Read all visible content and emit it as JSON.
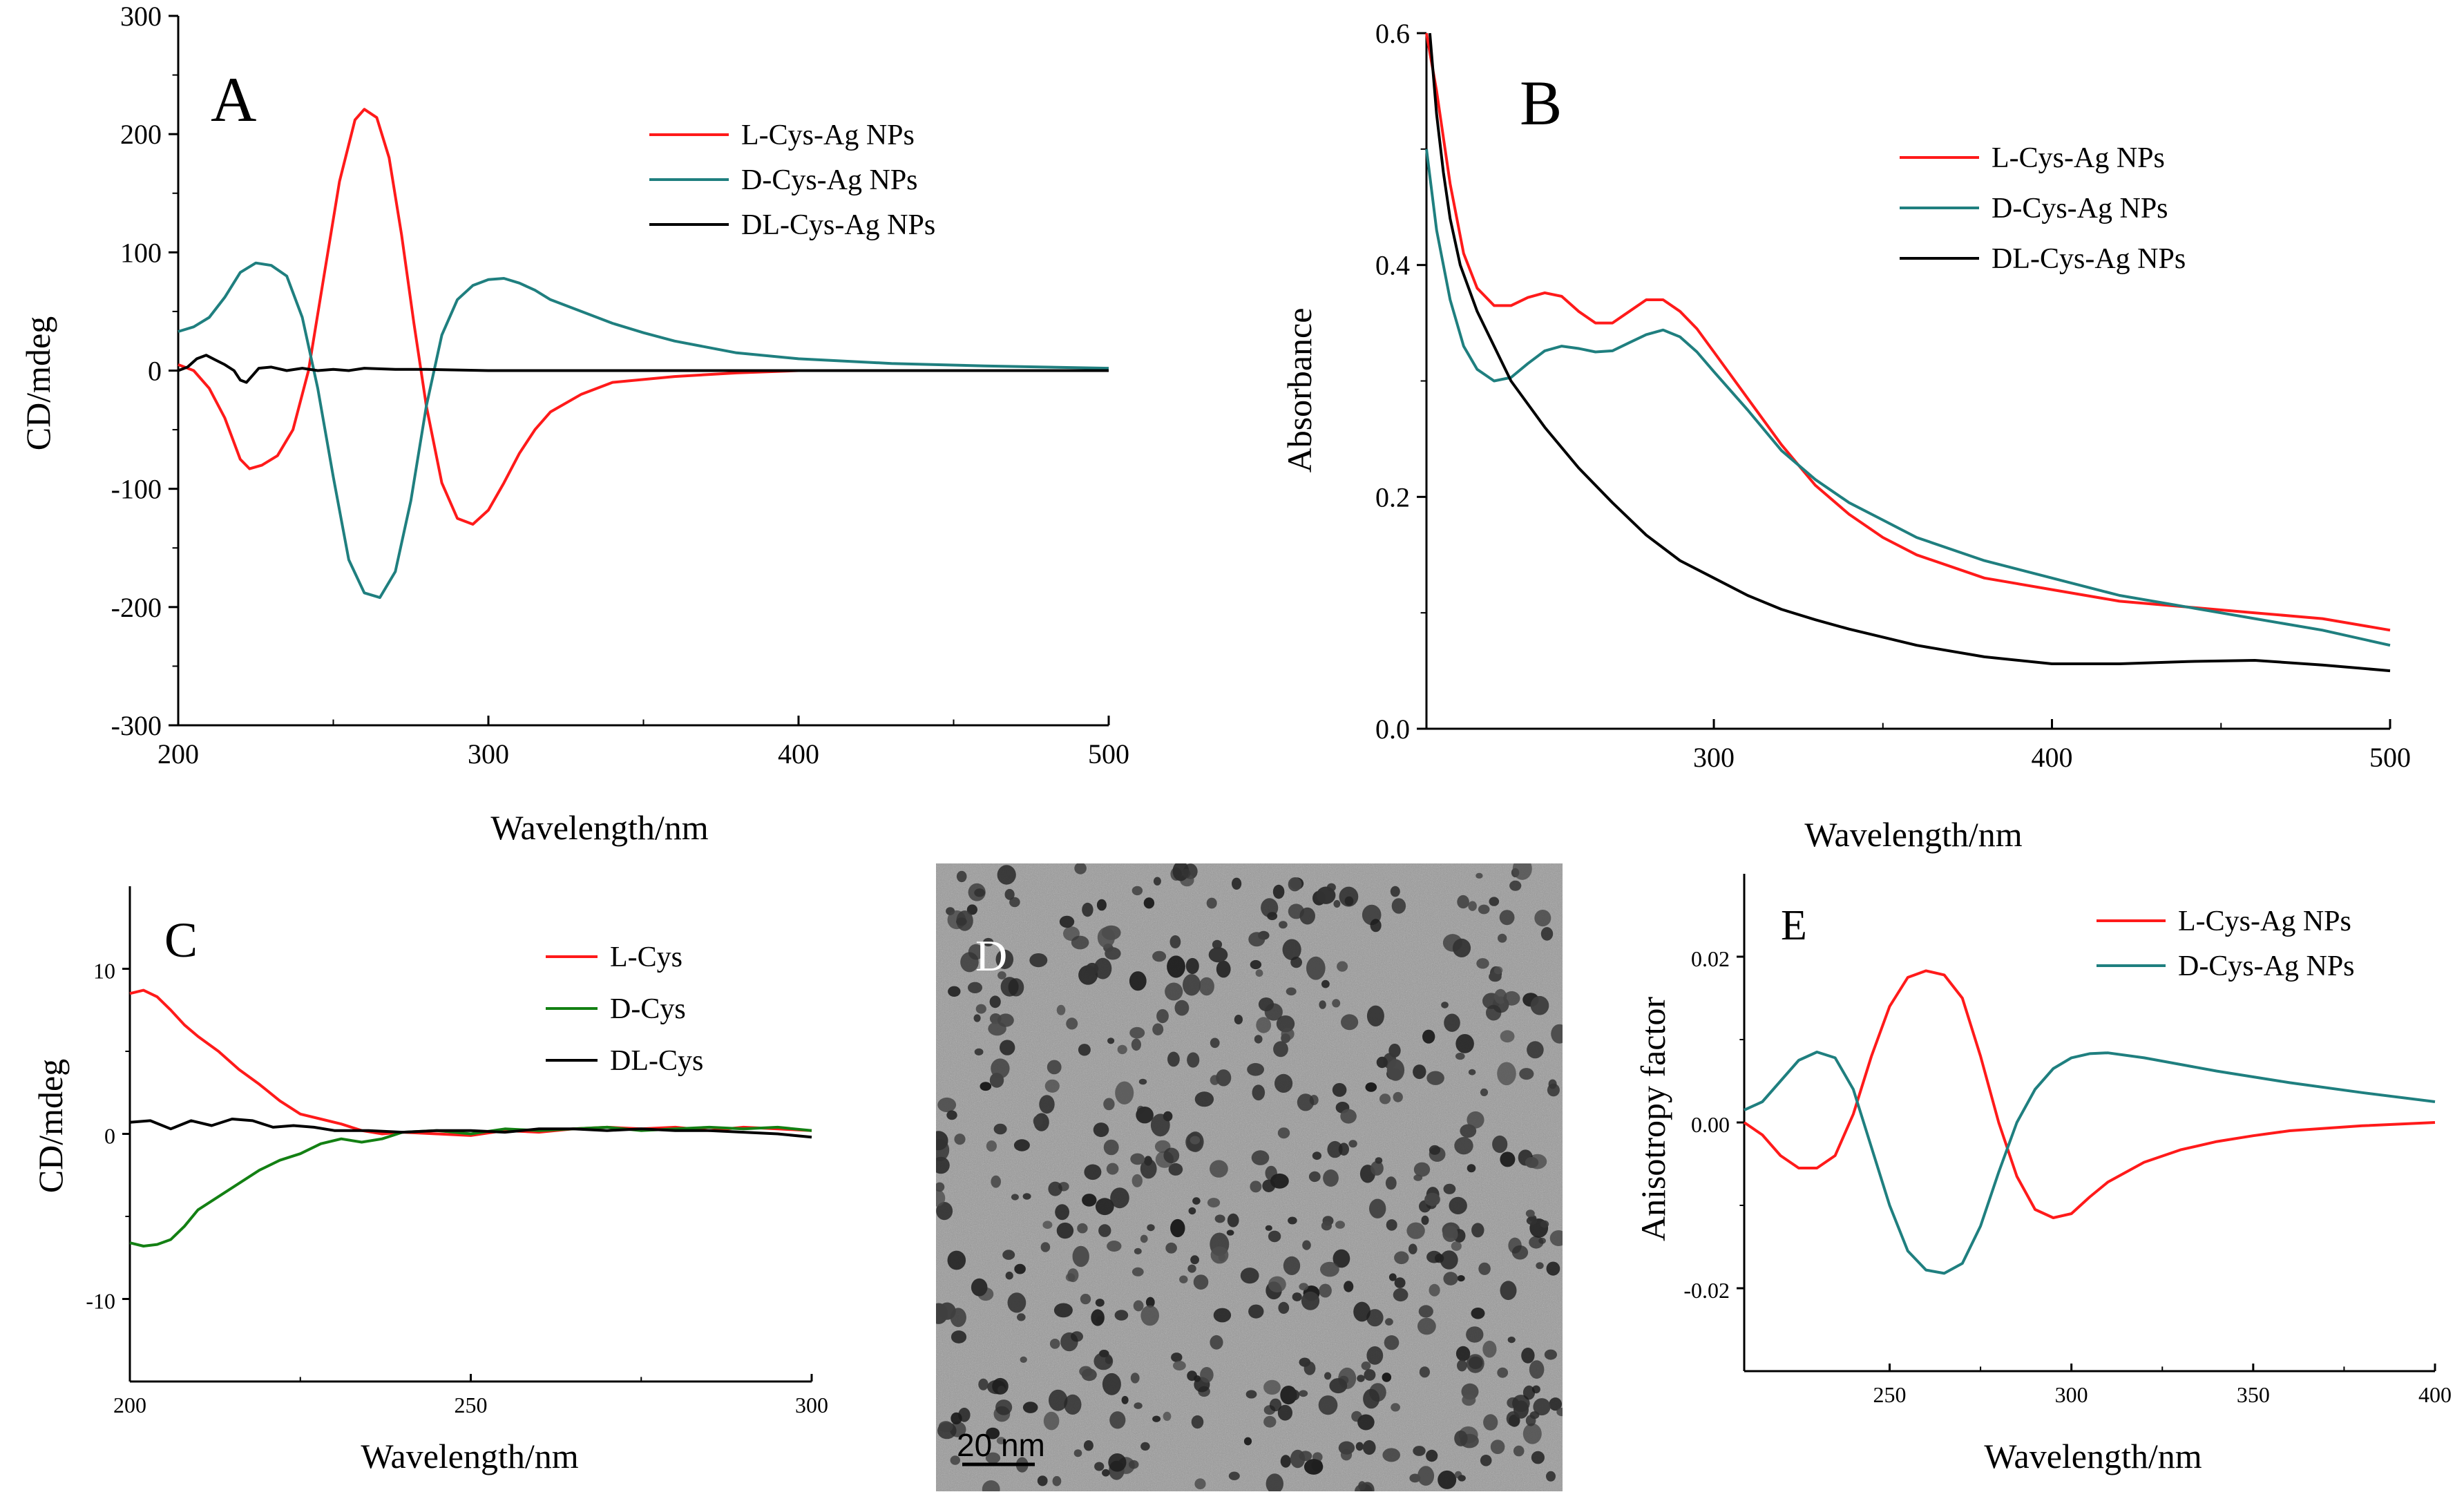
{
  "figure": {
    "panels": [
      "A",
      "B",
      "C",
      "D",
      "E"
    ]
  },
  "colors": {
    "red": "#ff1a1a",
    "teal": "#1f7f7f",
    "black": "#000000",
    "green": "#138013"
  },
  "chart_data": [
    {
      "panel": "A",
      "type": "line",
      "xlabel": "Wavelength/nm",
      "ylabel": "CD/mdeg",
      "xlim": [
        200,
        500
      ],
      "ylim": [
        -300,
        300
      ],
      "xticks": [
        200,
        300,
        400,
        500
      ],
      "yticks": [
        -300,
        -200,
        -100,
        0,
        100,
        200,
        300
      ],
      "legend_position": "top-right",
      "series": [
        {
          "name": "L-Cys-Ag NPs",
          "color": "red",
          "x": [
            200,
            205,
            210,
            215,
            220,
            223,
            227,
            232,
            237,
            242,
            247,
            252,
            257,
            260,
            264,
            268,
            272,
            276,
            280,
            285,
            290,
            295,
            300,
            305,
            310,
            315,
            320,
            330,
            340,
            360,
            380,
            400,
            430,
            460,
            500
          ],
          "y": [
            5,
            0,
            -15,
            -40,
            -75,
            -83,
            -80,
            -72,
            -50,
            0,
            80,
            160,
            212,
            221,
            214,
            180,
            115,
            40,
            -30,
            -95,
            -125,
            -130,
            -118,
            -95,
            -70,
            -50,
            -35,
            -20,
            -10,
            -5,
            -2,
            0,
            0,
            0,
            0
          ]
        },
        {
          "name": "D-Cys-Ag NPs",
          "color": "teal",
          "x": [
            200,
            205,
            210,
            215,
            220,
            225,
            230,
            235,
            240,
            245,
            250,
            255,
            260,
            265,
            270,
            275,
            280,
            285,
            290,
            295,
            300,
            305,
            310,
            315,
            320,
            330,
            340,
            350,
            360,
            380,
            400,
            430,
            460,
            500
          ],
          "y": [
            33,
            37,
            45,
            62,
            83,
            91,
            89,
            80,
            45,
            -15,
            -90,
            -160,
            -188,
            -192,
            -170,
            -110,
            -30,
            30,
            60,
            72,
            77,
            78,
            74,
            68,
            60,
            50,
            40,
            32,
            25,
            15,
            10,
            6,
            4,
            2
          ]
        },
        {
          "name": "DL-Cys-Ag NPs",
          "color": "black",
          "x": [
            200,
            203,
            206,
            209,
            212,
            215,
            218,
            220,
            222,
            224,
            226,
            230,
            235,
            240,
            245,
            250,
            255,
            260,
            270,
            280,
            300,
            350,
            400,
            450,
            500
          ],
          "y": [
            0,
            3,
            10,
            13,
            9,
            5,
            0,
            -8,
            -10,
            -4,
            2,
            3,
            0,
            2,
            0,
            1,
            0,
            2,
            1,
            1,
            0,
            0,
            0,
            0,
            0
          ]
        }
      ],
      "label": "A"
    },
    {
      "panel": "B",
      "type": "line",
      "xlabel": "Wavelength/nm",
      "ylabel": "Absorbance",
      "xlim": [
        215,
        500
      ],
      "ylim": [
        0.0,
        0.6
      ],
      "xticks": [
        300,
        400,
        500
      ],
      "yticks": [
        0.0,
        0.2,
        0.4,
        0.6
      ],
      "legend_position": "top-right",
      "series": [
        {
          "name": "L-Cys-Ag NPs",
          "color": "red",
          "x": [
            215,
            218,
            222,
            226,
            230,
            235,
            240,
            245,
            250,
            255,
            260,
            265,
            270,
            275,
            280,
            285,
            290,
            295,
            300,
            310,
            320,
            330,
            340,
            350,
            360,
            380,
            400,
            420,
            440,
            460,
            480,
            500
          ],
          "y": [
            0.6,
            0.55,
            0.47,
            0.41,
            0.38,
            0.365,
            0.365,
            0.372,
            0.376,
            0.373,
            0.36,
            0.35,
            0.35,
            0.36,
            0.37,
            0.37,
            0.36,
            0.345,
            0.325,
            0.285,
            0.245,
            0.21,
            0.185,
            0.165,
            0.15,
            0.13,
            0.12,
            0.11,
            0.105,
            0.1,
            0.095,
            0.085
          ]
        },
        {
          "name": "D-Cys-Ag NPs",
          "color": "teal",
          "x": [
            215,
            218,
            222,
            226,
            230,
            235,
            240,
            245,
            250,
            255,
            260,
            265,
            270,
            275,
            280,
            285,
            290,
            295,
            300,
            310,
            320,
            330,
            340,
            350,
            360,
            380,
            400,
            420,
            440,
            460,
            480,
            500
          ],
          "y": [
            0.5,
            0.43,
            0.37,
            0.33,
            0.31,
            0.3,
            0.303,
            0.315,
            0.326,
            0.33,
            0.328,
            0.325,
            0.326,
            0.333,
            0.34,
            0.344,
            0.338,
            0.325,
            0.308,
            0.275,
            0.24,
            0.215,
            0.195,
            0.18,
            0.165,
            0.145,
            0.13,
            0.115,
            0.105,
            0.095,
            0.085,
            0.072
          ]
        },
        {
          "name": "DL-Cys-Ag NPs",
          "color": "black",
          "x": [
            216,
            218,
            220,
            222,
            225,
            230,
            235,
            240,
            250,
            260,
            270,
            280,
            290,
            300,
            310,
            320,
            330,
            340,
            350,
            360,
            380,
            400,
            420,
            440,
            460,
            480,
            500
          ],
          "y": [
            0.6,
            0.53,
            0.48,
            0.44,
            0.4,
            0.36,
            0.33,
            0.3,
            0.26,
            0.225,
            0.195,
            0.167,
            0.145,
            0.13,
            0.115,
            0.103,
            0.094,
            0.086,
            0.079,
            0.072,
            0.062,
            0.056,
            0.056,
            0.058,
            0.059,
            0.055,
            0.05
          ]
        }
      ],
      "label": "B"
    },
    {
      "panel": "C",
      "type": "line",
      "xlabel": "Wavelength/nm",
      "ylabel": "CD/mdeg",
      "xlim": [
        200,
        300
      ],
      "ylim": [
        -15,
        15
      ],
      "xticks": [
        200,
        250,
        300
      ],
      "yticks": [
        -10,
        0,
        10
      ],
      "legend_position": "top-right",
      "series": [
        {
          "name": "L-Cys",
          "color": "red",
          "x": [
            200,
            202,
            204,
            206,
            208,
            210,
            213,
            216,
            219,
            222,
            225,
            228,
            231,
            234,
            237,
            240,
            245,
            250,
            255,
            260,
            265,
            270,
            275,
            280,
            285,
            290,
            295,
            300
          ],
          "y": [
            8.5,
            8.7,
            8.3,
            7.5,
            6.6,
            5.9,
            5.0,
            3.9,
            3.0,
            2.0,
            1.2,
            0.9,
            0.6,
            0.2,
            0.0,
            0.1,
            0.0,
            -0.1,
            0.2,
            0.1,
            0.3,
            0.4,
            0.3,
            0.4,
            0.2,
            0.4,
            0.3,
            0.2
          ]
        },
        {
          "name": "D-Cys",
          "color": "green",
          "x": [
            200,
            202,
            204,
            206,
            208,
            210,
            213,
            216,
            219,
            222,
            225,
            228,
            231,
            234,
            237,
            240,
            245,
            250,
            255,
            260,
            265,
            270,
            275,
            280,
            285,
            290,
            295,
            300
          ],
          "y": [
            -6.6,
            -6.8,
            -6.7,
            -6.4,
            -5.6,
            -4.6,
            -3.8,
            -3.0,
            -2.2,
            -1.6,
            -1.2,
            -0.6,
            -0.3,
            -0.5,
            -0.3,
            0.1,
            0.2,
            0.0,
            0.3,
            0.2,
            0.3,
            0.4,
            0.2,
            0.3,
            0.4,
            0.3,
            0.4,
            0.2
          ]
        },
        {
          "name": "DL-Cys",
          "color": "black",
          "x": [
            200,
            203,
            206,
            209,
            212,
            215,
            218,
            221,
            224,
            227,
            230,
            235,
            240,
            245,
            250,
            255,
            260,
            265,
            270,
            275,
            280,
            285,
            290,
            295,
            300
          ],
          "y": [
            0.7,
            0.8,
            0.3,
            0.8,
            0.5,
            0.9,
            0.8,
            0.4,
            0.5,
            0.4,
            0.2,
            0.2,
            0.1,
            0.2,
            0.2,
            0.1,
            0.3,
            0.3,
            0.2,
            0.3,
            0.2,
            0.2,
            0.1,
            0.0,
            -0.2
          ]
        }
      ],
      "label": "C"
    },
    {
      "panel": "D",
      "type": "image",
      "label": "D",
      "scale_bar": "20 nm"
    },
    {
      "panel": "E",
      "type": "line",
      "xlabel": "Wavelength/nm",
      "ylabel": "Anisotropy factor",
      "xlim": [
        210,
        400
      ],
      "ylim": [
        -0.03,
        0.03
      ],
      "xticks": [
        250,
        300,
        350,
        400
      ],
      "yticks": [
        -0.02,
        0.0,
        0.02
      ],
      "legend_position": "top-right",
      "series": [
        {
          "name": "L-Cys-Ag NPs",
          "color": "red",
          "x": [
            210,
            215,
            220,
            225,
            230,
            235,
            240,
            245,
            250,
            255,
            260,
            265,
            270,
            275,
            280,
            285,
            290,
            295,
            300,
            305,
            310,
            320,
            330,
            340,
            350,
            360,
            380,
            400
          ],
          "y": [
            0,
            -0.0015,
            -0.004,
            -0.0055,
            -0.0055,
            -0.004,
            0.001,
            0.008,
            0.014,
            0.0175,
            0.0183,
            0.0178,
            0.015,
            0.008,
            0.0,
            -0.0065,
            -0.0105,
            -0.0115,
            -0.011,
            -0.009,
            -0.0072,
            -0.0048,
            -0.0033,
            -0.0023,
            -0.0016,
            -0.001,
            -0.0004,
            0.0
          ]
        },
        {
          "name": "D-Cys-Ag NPs",
          "color": "teal",
          "x": [
            210,
            215,
            220,
            225,
            230,
            235,
            240,
            245,
            250,
            255,
            260,
            265,
            270,
            275,
            280,
            285,
            290,
            295,
            300,
            305,
            310,
            320,
            330,
            340,
            350,
            360,
            380,
            400
          ],
          "y": [
            0.0015,
            0.0025,
            0.005,
            0.0075,
            0.0085,
            0.0078,
            0.004,
            -0.003,
            -0.01,
            -0.0155,
            -0.0178,
            -0.0182,
            -0.017,
            -0.0125,
            -0.006,
            0.0,
            0.004,
            0.0065,
            0.0078,
            0.0083,
            0.0084,
            0.0078,
            0.007,
            0.0062,
            0.0055,
            0.0048,
            0.0036,
            0.0025
          ]
        }
      ],
      "label": "E"
    }
  ]
}
